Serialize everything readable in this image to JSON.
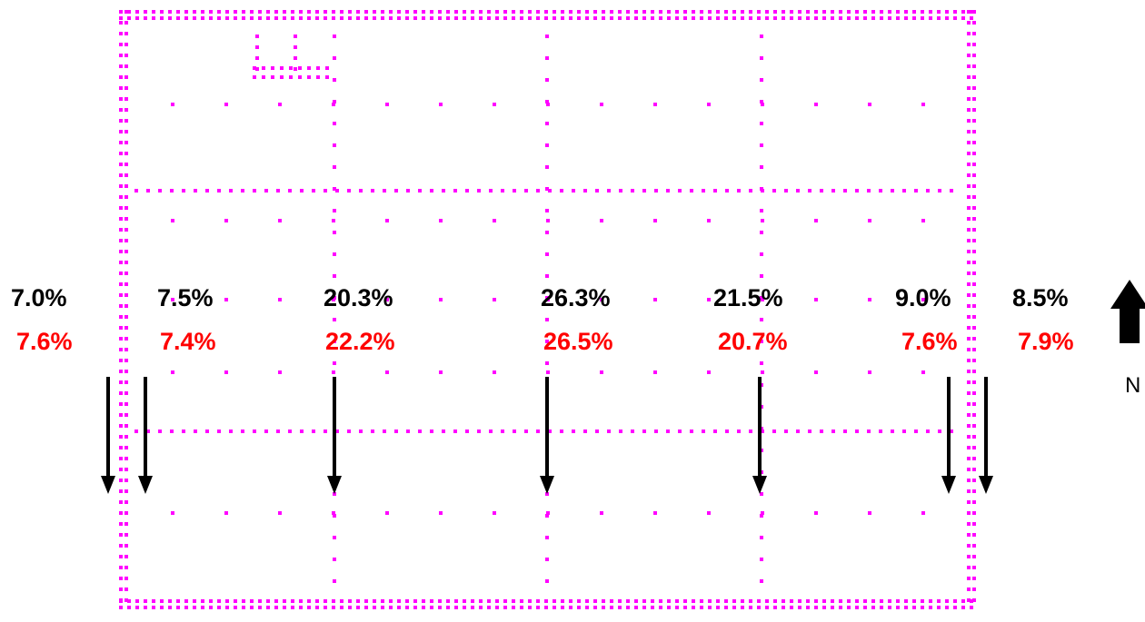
{
  "colors": {
    "grid_points": "#ff00ff",
    "primary_values": "#000000",
    "secondary_values": "#ff0000",
    "arrows": "#000000"
  },
  "columns": [
    {
      "primary": "7.0%",
      "secondary": "7.6%"
    },
    {
      "primary": "7.5%",
      "secondary": "7.4%"
    },
    {
      "primary": "20.3%",
      "secondary": "22.2%"
    },
    {
      "primary": "26.3%",
      "secondary": "26.5%"
    },
    {
      "primary": "21.5%",
      "secondary": "20.7%"
    },
    {
      "primary": "9.0%",
      "secondary": "7.6%"
    },
    {
      "primary": "8.5%",
      "secondary": "7.9%"
    }
  ],
  "north": {
    "label": "N",
    "icon": "north-arrow-icon"
  },
  "flow_arrows": {
    "icon": "down-arrow-icon",
    "count": 7
  }
}
